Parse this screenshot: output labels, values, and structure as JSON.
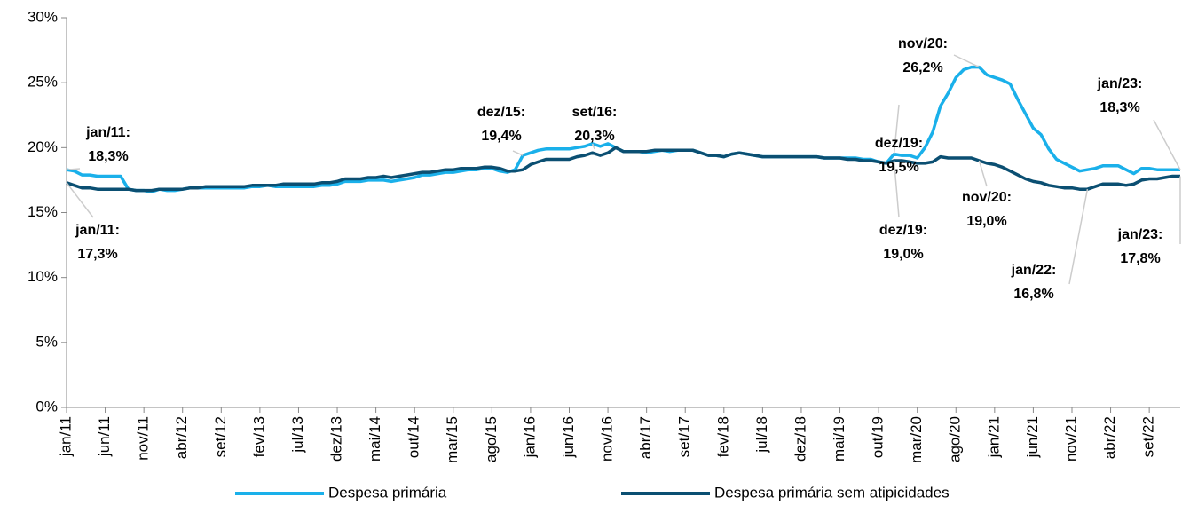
{
  "chart_data": {
    "type": "line",
    "categories": [
      "jan/11",
      null,
      null,
      null,
      null,
      "jun/11",
      null,
      null,
      null,
      null,
      "nov/11",
      null,
      null,
      null,
      null,
      "abr/12",
      null,
      null,
      null,
      null,
      "set/12",
      null,
      null,
      null,
      null,
      "fev/13",
      null,
      null,
      null,
      null,
      "jul/13",
      null,
      null,
      null,
      null,
      "dez/13",
      null,
      null,
      null,
      null,
      "mai/14",
      null,
      null,
      null,
      null,
      "out/14",
      null,
      null,
      null,
      null,
      "mar/15",
      null,
      null,
      null,
      null,
      "ago/15",
      null,
      null,
      null,
      null,
      "jan/16",
      null,
      null,
      null,
      null,
      "jun/16",
      null,
      null,
      null,
      null,
      "nov/16",
      null,
      null,
      null,
      null,
      "abr/17",
      null,
      null,
      null,
      null,
      "set/17",
      null,
      null,
      null,
      null,
      "fev/18",
      null,
      null,
      null,
      null,
      "jul/18",
      null,
      null,
      null,
      null,
      "dez/18",
      null,
      null,
      null,
      null,
      "mai/19",
      null,
      null,
      null,
      null,
      "out/19",
      null,
      null,
      null,
      null,
      "mar/20",
      null,
      null,
      null,
      null,
      "ago/20",
      null,
      null,
      null,
      null,
      "jan/21",
      null,
      null,
      null,
      null,
      "jun/21",
      null,
      null,
      null,
      null,
      "nov/21",
      null,
      null,
      null,
      null,
      "abr/22",
      null,
      null,
      null,
      null,
      "set/22",
      null,
      null,
      null,
      null
    ],
    "series": [
      {
        "name": "Despesa primária",
        "color": "#1ab0ea",
        "values": [
          18.3,
          18.2,
          17.9,
          17.9,
          17.8,
          17.8,
          17.8,
          17.8,
          16.8,
          16.7,
          16.7,
          16.6,
          16.8,
          16.7,
          16.7,
          16.8,
          16.9,
          16.9,
          16.9,
          16.9,
          16.9,
          16.9,
          16.9,
          16.9,
          17.0,
          17.0,
          17.1,
          17.0,
          17.0,
          17.0,
          17.0,
          17.0,
          17.0,
          17.1,
          17.1,
          17.2,
          17.4,
          17.4,
          17.4,
          17.5,
          17.5,
          17.5,
          17.4,
          17.5,
          17.6,
          17.7,
          17.9,
          17.9,
          18.0,
          18.1,
          18.1,
          18.2,
          18.3,
          18.3,
          18.4,
          18.4,
          18.2,
          18.1,
          18.3,
          19.4,
          19.6,
          19.8,
          19.9,
          19.9,
          19.9,
          19.9,
          20.0,
          20.1,
          20.3,
          20.1,
          20.3,
          20.0,
          19.7,
          19.7,
          19.7,
          19.6,
          19.7,
          19.8,
          19.7,
          19.8,
          19.8,
          19.8,
          19.6,
          19.4,
          19.4,
          19.3,
          19.5,
          19.6,
          19.5,
          19.4,
          19.3,
          19.3,
          19.3,
          19.3,
          19.3,
          19.3,
          19.3,
          19.3,
          19.2,
          19.2,
          19.2,
          19.2,
          19.2,
          19.1,
          19.1,
          18.9,
          18.8,
          19.5,
          19.4,
          19.4,
          19.2,
          20.0,
          21.2,
          23.2,
          24.2,
          25.4,
          26.0,
          26.2,
          26.2,
          25.6,
          25.4,
          25.2,
          24.9,
          23.7,
          22.6,
          21.5,
          21.0,
          19.9,
          19.1,
          18.8,
          18.5,
          18.2,
          18.3,
          18.4,
          18.6,
          18.6,
          18.6,
          18.3,
          18.0,
          18.4,
          18.4,
          18.3,
          18.3,
          18.3,
          18.3
        ]
      },
      {
        "name": "Despesa primária sem atipicidades",
        "color": "#0b4f72",
        "values": [
          17.3,
          17.1,
          16.9,
          16.9,
          16.8,
          16.8,
          16.8,
          16.8,
          16.8,
          16.7,
          16.7,
          16.7,
          16.8,
          16.8,
          16.8,
          16.8,
          16.9,
          16.9,
          17.0,
          17.0,
          17.0,
          17.0,
          17.0,
          17.0,
          17.1,
          17.1,
          17.1,
          17.1,
          17.2,
          17.2,
          17.2,
          17.2,
          17.2,
          17.3,
          17.3,
          17.4,
          17.6,
          17.6,
          17.6,
          17.7,
          17.7,
          17.8,
          17.7,
          17.8,
          17.9,
          18.0,
          18.1,
          18.1,
          18.2,
          18.3,
          18.3,
          18.4,
          18.4,
          18.4,
          18.5,
          18.5,
          18.4,
          18.2,
          18.2,
          18.3,
          18.7,
          18.9,
          19.1,
          19.1,
          19.1,
          19.1,
          19.3,
          19.4,
          19.6,
          19.4,
          19.6,
          20.0,
          19.7,
          19.7,
          19.7,
          19.7,
          19.8,
          19.8,
          19.8,
          19.8,
          19.8,
          19.8,
          19.6,
          19.4,
          19.4,
          19.3,
          19.5,
          19.6,
          19.5,
          19.4,
          19.3,
          19.3,
          19.3,
          19.3,
          19.3,
          19.3,
          19.3,
          19.3,
          19.2,
          19.2,
          19.2,
          19.1,
          19.1,
          19.0,
          19.0,
          18.9,
          18.8,
          19.0,
          19.0,
          18.9,
          18.8,
          18.8,
          18.9,
          19.3,
          19.2,
          19.2,
          19.2,
          19.2,
          19.0,
          18.8,
          18.7,
          18.5,
          18.2,
          17.9,
          17.6,
          17.4,
          17.3,
          17.1,
          17.0,
          16.9,
          16.9,
          16.8,
          16.8,
          17.0,
          17.2,
          17.2,
          17.2,
          17.1,
          17.2,
          17.5,
          17.6,
          17.6,
          17.7,
          17.8,
          17.8
        ]
      }
    ],
    "ylim": [
      0,
      30
    ],
    "yticks": [
      {
        "value": 0,
        "label": "0%"
      },
      {
        "value": 5,
        "label": "5%"
      },
      {
        "value": 10,
        "label": "10%"
      },
      {
        "value": 15,
        "label": "15%"
      },
      {
        "value": 20,
        "label": "20%"
      },
      {
        "value": 25,
        "label": "25%"
      },
      {
        "value": 30,
        "label": "30%"
      }
    ],
    "annotations": [
      {
        "date": "jan/11:",
        "value_label": "18,3%"
      },
      {
        "date": "jan/11:",
        "value_label": "17,3%"
      },
      {
        "date": "dez/15:",
        "value_label": "19,4%"
      },
      {
        "date": "set/16:",
        "value_label": "20,3%"
      },
      {
        "date": "dez/19:",
        "value_label": "19,5%"
      },
      {
        "date": "nov/20:",
        "value_label": "26,2%"
      },
      {
        "date": "jan/23:",
        "value_label": "18,3%"
      },
      {
        "date": "dez/19:",
        "value_label": "19,0%"
      },
      {
        "date": "nov/20:",
        "value_label": "19,0%"
      },
      {
        "date": "jan/23:",
        "value_label": "17,8%"
      },
      {
        "date": "jan/22:",
        "value_label": "16,8%"
      }
    ]
  }
}
